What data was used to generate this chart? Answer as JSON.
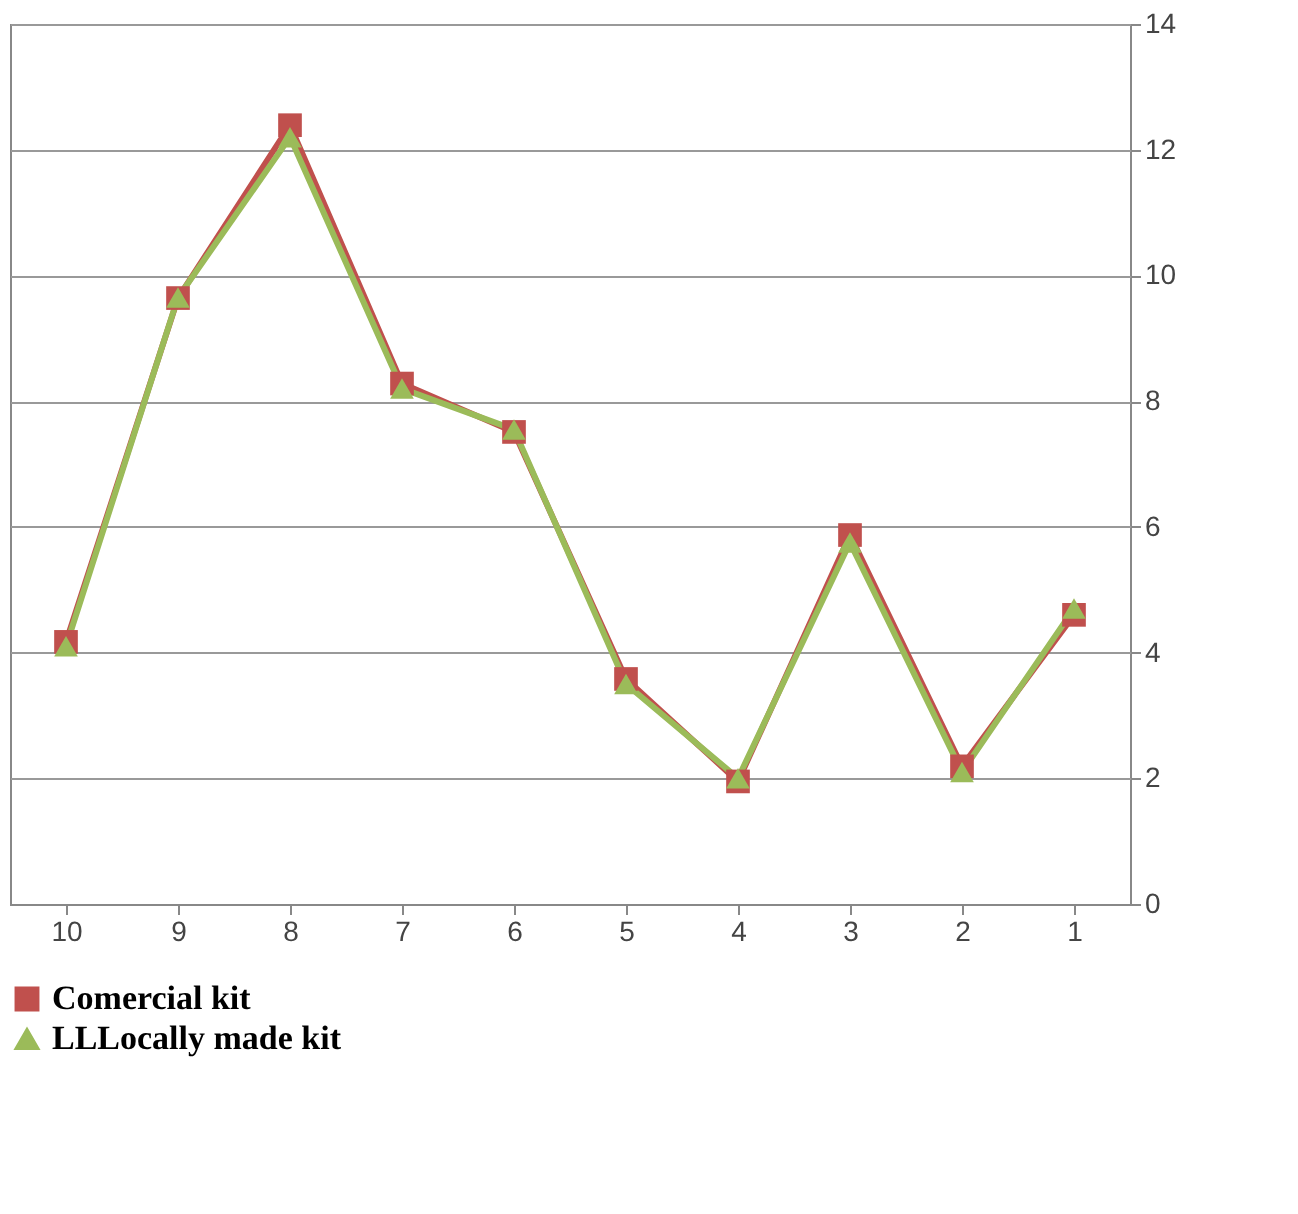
{
  "chart_data": {
    "type": "line",
    "categories": [
      "10",
      "9",
      "8",
      "7",
      "6",
      "5",
      "4",
      "3",
      "2",
      "1"
    ],
    "series": [
      {
        "name": "Comercial kit",
        "color": "#c0504d",
        "marker": "square",
        "values": [
          4.17,
          9.64,
          12.39,
          8.28,
          7.51,
          3.58,
          1.95,
          5.87,
          2.19,
          4.6
        ]
      },
      {
        "name": "LLLocally made kit",
        "color": "#9bbb59",
        "marker": "triangle",
        "values": [
          4.1,
          9.65,
          12.2,
          8.2,
          7.55,
          3.5,
          2.0,
          5.75,
          2.1,
          4.7
        ]
      }
    ],
    "ylim": [
      0,
      14
    ],
    "yticks": [
      0,
      2,
      4,
      6,
      8,
      10,
      12,
      14
    ],
    "grid": "y",
    "legend": "bottom"
  }
}
